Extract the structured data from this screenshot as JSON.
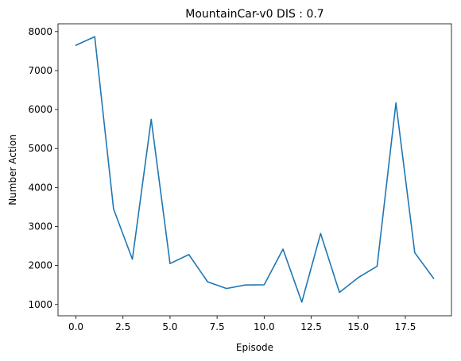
{
  "chart_data": {
    "type": "line",
    "title": "MountainCar-v0 DIS : 0.7",
    "xlabel": "Episode",
    "ylabel": "Number Action",
    "xlim": [
      -0.95,
      19.95
    ],
    "ylim": [
      710,
      8200
    ],
    "x_ticks": [
      0,
      2.5,
      5,
      7.5,
      10,
      12.5,
      15,
      17.5
    ],
    "x_tick_labels": [
      "0.0",
      "2.5",
      "5.0",
      "7.5",
      "10.0",
      "12.5",
      "15.0",
      "17.5"
    ],
    "y_ticks": [
      1000,
      2000,
      3000,
      4000,
      5000,
      6000,
      7000,
      8000
    ],
    "y_tick_labels": [
      "1000",
      "2000",
      "3000",
      "4000",
      "5000",
      "6000",
      "7000",
      "8000"
    ],
    "grid": false,
    "series": [
      {
        "color": "#1f77b4",
        "x": [
          0,
          1,
          2,
          3,
          4,
          5,
          6,
          7,
          8,
          9,
          10,
          11,
          12,
          13,
          14,
          15,
          16,
          17,
          18,
          19
        ],
        "values": [
          7650,
          7870,
          3450,
          2160,
          5750,
          2050,
          2280,
          1580,
          1410,
          1500,
          1505,
          2420,
          1060,
          2820,
          1310,
          1690,
          1980,
          6170,
          2330,
          1670
        ]
      }
    ]
  }
}
